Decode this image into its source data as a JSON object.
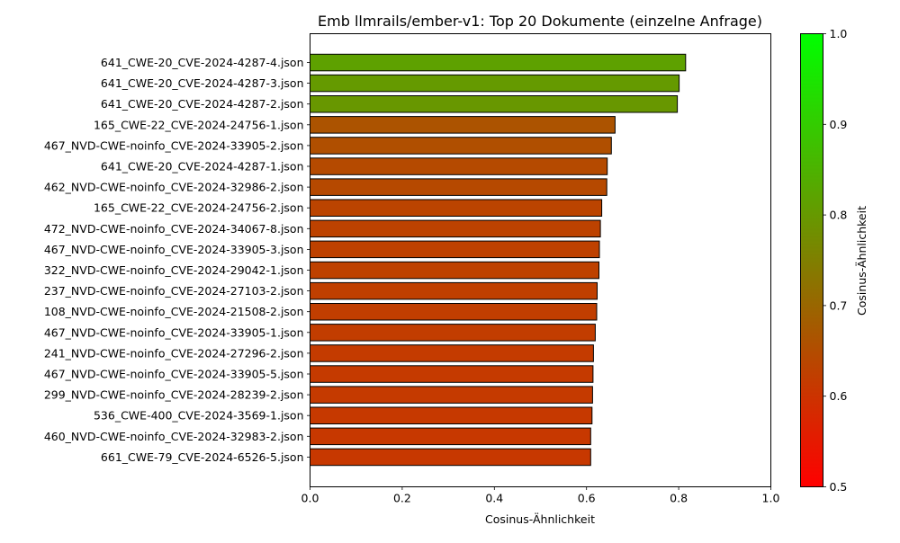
{
  "chart_data": {
    "type": "bar",
    "orientation": "horizontal",
    "title": "Emb llmrails/ember-v1: Top 20 Dokumente (einzelne Anfrage)",
    "xlabel": "Cosinus-Ähnlichkeit",
    "ylabel": "",
    "xlim": [
      0.0,
      1.0
    ],
    "xticks": [
      "0.0",
      "0.2",
      "0.4",
      "0.6",
      "0.8",
      "1.0"
    ],
    "grid": false,
    "categories": [
      "641_CWE-20_CVE-2024-4287-4.json",
      "641_CWE-20_CVE-2024-4287-3.json",
      "641_CWE-20_CVE-2024-4287-2.json",
      "165_CWE-22_CVE-2024-24756-1.json",
      "467_NVD-CWE-noinfo_CVE-2024-33905-2.json",
      "641_CWE-20_CVE-2024-4287-1.json",
      "462_NVD-CWE-noinfo_CVE-2024-32986-2.json",
      "165_CWE-22_CVE-2024-24756-2.json",
      "472_NVD-CWE-noinfo_CVE-2024-34067-8.json",
      "467_NVD-CWE-noinfo_CVE-2024-33905-3.json",
      "322_NVD-CWE-noinfo_CVE-2024-29042-1.json",
      "237_NVD-CWE-noinfo_CVE-2024-27103-2.json",
      "108_NVD-CWE-noinfo_CVE-2024-21508-2.json",
      "467_NVD-CWE-noinfo_CVE-2024-33905-1.json",
      "241_NVD-CWE-noinfo_CVE-2024-27296-2.json",
      "467_NVD-CWE-noinfo_CVE-2024-33905-5.json",
      "299_NVD-CWE-noinfo_CVE-2024-28239-2.json",
      "536_CWE-400_CVE-2024-3569-1.json",
      "460_NVD-CWE-noinfo_CVE-2024-32983-2.json",
      "661_CWE-79_CVE-2024-6526-5.json"
    ],
    "values": [
      0.815,
      0.801,
      0.797,
      0.662,
      0.654,
      0.645,
      0.644,
      0.633,
      0.63,
      0.628,
      0.627,
      0.623,
      0.622,
      0.619,
      0.615,
      0.614,
      0.613,
      0.612,
      0.609,
      0.609
    ],
    "bar_edge_color": "#000000",
    "colorbar": {
      "label": "Cosinus-Ähnlichkeit",
      "range": [
        0.5,
        1.0
      ],
      "ticks": [
        "0.5",
        "0.6",
        "0.7",
        "0.8",
        "0.9",
        "1.0"
      ],
      "color_low": "#ff0000",
      "color_high": "#00ff00"
    }
  }
}
